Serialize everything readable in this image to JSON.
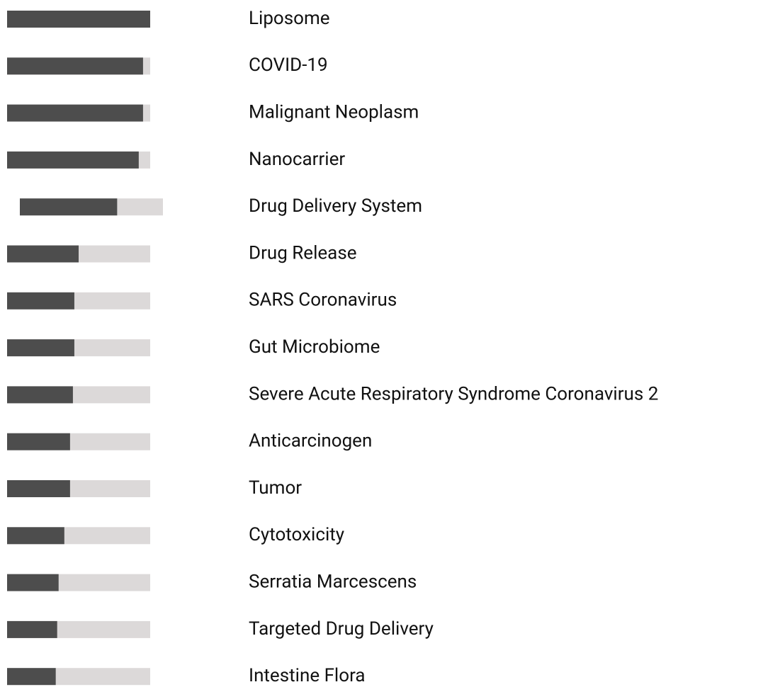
{
  "chart_data": {
    "type": "bar",
    "orientation": "horizontal",
    "categories": [
      "Liposome",
      "COVID-19",
      "Malignant Neoplasm",
      "Nanocarrier",
      "Drug Delivery System",
      "Drug Release",
      "SARS Coronavirus",
      "Gut Microbiome",
      "Severe Acute Respiratory Syndrome Coronavirus 2",
      "Anticarcinogen",
      "Tumor",
      "Cytotoxicity",
      "Serratia Marcescens",
      "Targeted Drug Delivery",
      "Intestine Flora"
    ],
    "values": [
      100,
      95,
      95,
      92,
      68,
      50,
      47,
      47,
      46,
      44,
      44,
      40,
      36,
      35,
      34
    ],
    "xlim": [
      0,
      100
    ],
    "color": "#4d4d4d",
    "track_color": "#dcd9d9"
  }
}
